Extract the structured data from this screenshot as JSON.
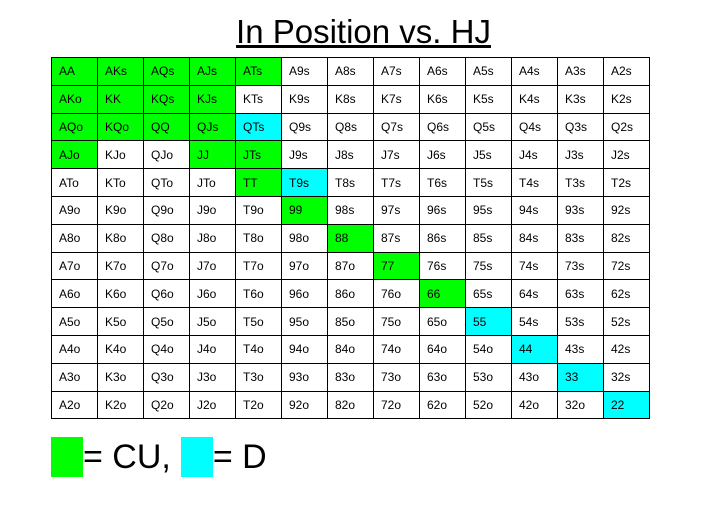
{
  "title": "In Position vs. HJ",
  "colors": {
    "CU": "#00ff00",
    "D": "#00ffff",
    "none": "#ffffff"
  },
  "grid": [
    [
      [
        "AA",
        "CU"
      ],
      [
        "AKs",
        "CU"
      ],
      [
        "AQs",
        "CU"
      ],
      [
        "AJs",
        "CU"
      ],
      [
        "ATs",
        "CU"
      ],
      [
        "A9s",
        ""
      ],
      [
        "A8s",
        ""
      ],
      [
        "A7s",
        ""
      ],
      [
        "A6s",
        ""
      ],
      [
        "A5s",
        ""
      ],
      [
        "A4s",
        ""
      ],
      [
        "A3s",
        ""
      ],
      [
        "A2s",
        ""
      ]
    ],
    [
      [
        "AKo",
        "CU"
      ],
      [
        "KK",
        "CU"
      ],
      [
        "KQs",
        "CU"
      ],
      [
        "KJs",
        "CU"
      ],
      [
        "KTs",
        ""
      ],
      [
        "K9s",
        ""
      ],
      [
        "K8s",
        ""
      ],
      [
        "K7s",
        ""
      ],
      [
        "K6s",
        ""
      ],
      [
        "K5s",
        ""
      ],
      [
        "K4s",
        ""
      ],
      [
        "K3s",
        ""
      ],
      [
        "K2s",
        ""
      ]
    ],
    [
      [
        "AQo",
        "CU"
      ],
      [
        "KQo",
        "CU"
      ],
      [
        "QQ",
        "CU"
      ],
      [
        "QJs",
        "CU"
      ],
      [
        "QTs",
        "D"
      ],
      [
        "Q9s",
        ""
      ],
      [
        "Q8s",
        ""
      ],
      [
        "Q7s",
        ""
      ],
      [
        "Q6s",
        ""
      ],
      [
        "Q5s",
        ""
      ],
      [
        "Q4s",
        ""
      ],
      [
        "Q3s",
        ""
      ],
      [
        "Q2s",
        ""
      ]
    ],
    [
      [
        "AJo",
        "CU"
      ],
      [
        "KJo",
        ""
      ],
      [
        "QJo",
        ""
      ],
      [
        "JJ",
        "CU"
      ],
      [
        "JTs",
        "CU"
      ],
      [
        "J9s",
        ""
      ],
      [
        "J8s",
        ""
      ],
      [
        "J7s",
        ""
      ],
      [
        "J6s",
        ""
      ],
      [
        "J5s",
        ""
      ],
      [
        "J4s",
        ""
      ],
      [
        "J3s",
        ""
      ],
      [
        "J2s",
        ""
      ]
    ],
    [
      [
        "ATo",
        ""
      ],
      [
        "KTo",
        ""
      ],
      [
        "QTo",
        ""
      ],
      [
        "JTo",
        ""
      ],
      [
        "TT",
        "CU"
      ],
      [
        "T9s",
        "D"
      ],
      [
        "T8s",
        ""
      ],
      [
        "T7s",
        ""
      ],
      [
        "T6s",
        ""
      ],
      [
        "T5s",
        ""
      ],
      [
        "T4s",
        ""
      ],
      [
        "T3s",
        ""
      ],
      [
        "T2s",
        ""
      ]
    ],
    [
      [
        "A9o",
        ""
      ],
      [
        "K9o",
        ""
      ],
      [
        "Q9o",
        ""
      ],
      [
        "J9o",
        ""
      ],
      [
        "T9o",
        ""
      ],
      [
        "99",
        "CU"
      ],
      [
        "98s",
        ""
      ],
      [
        "97s",
        ""
      ],
      [
        "96s",
        ""
      ],
      [
        "95s",
        ""
      ],
      [
        "94s",
        ""
      ],
      [
        "93s",
        ""
      ],
      [
        "92s",
        ""
      ]
    ],
    [
      [
        "A8o",
        ""
      ],
      [
        "K8o",
        ""
      ],
      [
        "Q8o",
        ""
      ],
      [
        "J8o",
        ""
      ],
      [
        "T8o",
        ""
      ],
      [
        "98o",
        ""
      ],
      [
        "88",
        "CU"
      ],
      [
        "87s",
        ""
      ],
      [
        "86s",
        ""
      ],
      [
        "85s",
        ""
      ],
      [
        "84s",
        ""
      ],
      [
        "83s",
        ""
      ],
      [
        "82s",
        ""
      ]
    ],
    [
      [
        "A7o",
        ""
      ],
      [
        "K7o",
        ""
      ],
      [
        "Q7o",
        ""
      ],
      [
        "J7o",
        ""
      ],
      [
        "T7o",
        ""
      ],
      [
        "97o",
        ""
      ],
      [
        "87o",
        ""
      ],
      [
        "77",
        "CU"
      ],
      [
        "76s",
        ""
      ],
      [
        "75s",
        ""
      ],
      [
        "74s",
        ""
      ],
      [
        "73s",
        ""
      ],
      [
        "72s",
        ""
      ]
    ],
    [
      [
        "A6o",
        ""
      ],
      [
        "K6o",
        ""
      ],
      [
        "Q6o",
        ""
      ],
      [
        "J6o",
        ""
      ],
      [
        "T6o",
        ""
      ],
      [
        "96o",
        ""
      ],
      [
        "86o",
        ""
      ],
      [
        "76o",
        ""
      ],
      [
        "66",
        "CU"
      ],
      [
        "65s",
        ""
      ],
      [
        "64s",
        ""
      ],
      [
        "63s",
        ""
      ],
      [
        "62s",
        ""
      ]
    ],
    [
      [
        "A5o",
        ""
      ],
      [
        "K5o",
        ""
      ],
      [
        "Q5o",
        ""
      ],
      [
        "J5o",
        ""
      ],
      [
        "T5o",
        ""
      ],
      [
        "95o",
        ""
      ],
      [
        "85o",
        ""
      ],
      [
        "75o",
        ""
      ],
      [
        "65o",
        ""
      ],
      [
        "55",
        "D"
      ],
      [
        "54s",
        ""
      ],
      [
        "53s",
        ""
      ],
      [
        "52s",
        ""
      ]
    ],
    [
      [
        "A4o",
        ""
      ],
      [
        "K4o",
        ""
      ],
      [
        "Q4o",
        ""
      ],
      [
        "J4o",
        ""
      ],
      [
        "T4o",
        ""
      ],
      [
        "94o",
        ""
      ],
      [
        "84o",
        ""
      ],
      [
        "74o",
        ""
      ],
      [
        "64o",
        ""
      ],
      [
        "54o",
        ""
      ],
      [
        "44",
        "D"
      ],
      [
        "43s",
        ""
      ],
      [
        "42s",
        ""
      ]
    ],
    [
      [
        "A3o",
        ""
      ],
      [
        "K3o",
        ""
      ],
      [
        "Q3o",
        ""
      ],
      [
        "J3o",
        ""
      ],
      [
        "T3o",
        ""
      ],
      [
        "93o",
        ""
      ],
      [
        "83o",
        ""
      ],
      [
        "73o",
        ""
      ],
      [
        "63o",
        ""
      ],
      [
        "53o",
        ""
      ],
      [
        "43o",
        ""
      ],
      [
        "33",
        "D"
      ],
      [
        "32s",
        ""
      ]
    ],
    [
      [
        "A2o",
        ""
      ],
      [
        "K2o",
        ""
      ],
      [
        "Q2o",
        ""
      ],
      [
        "J2o",
        ""
      ],
      [
        "T2o",
        ""
      ],
      [
        "92o",
        ""
      ],
      [
        "82o",
        ""
      ],
      [
        "72o",
        ""
      ],
      [
        "62o",
        ""
      ],
      [
        "52o",
        ""
      ],
      [
        "42o",
        ""
      ],
      [
        "32o",
        ""
      ],
      [
        "22",
        "D"
      ]
    ]
  ],
  "legend": {
    "cu_text": "= CU,",
    "d_text": "= D"
  }
}
